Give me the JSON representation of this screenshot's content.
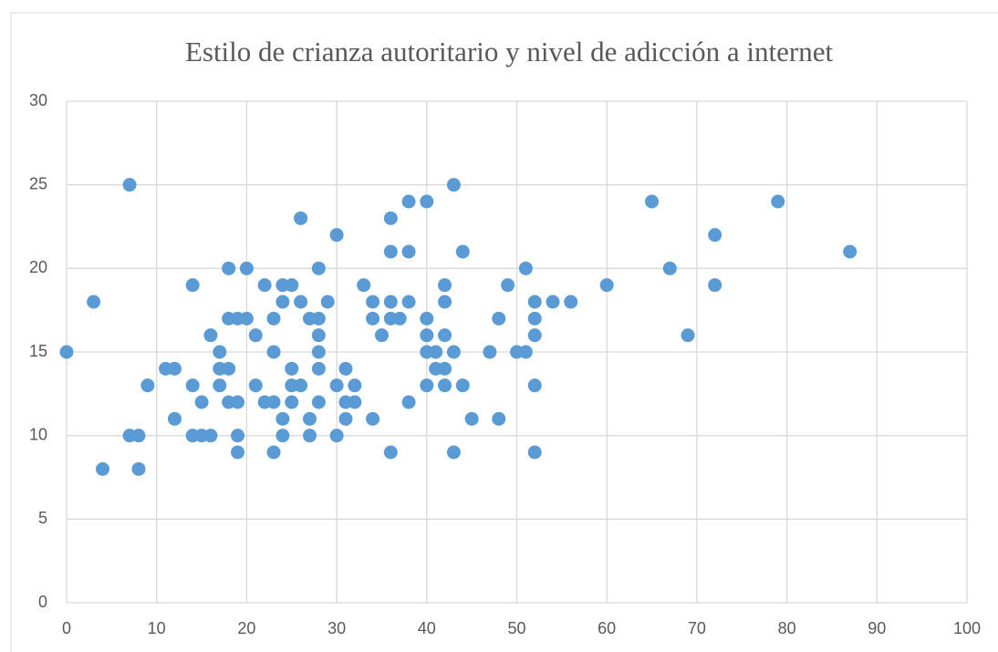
{
  "chart_data": {
    "type": "scatter",
    "title": "Estilo de crianza autoritario y nivel de adicción a internet",
    "color": "#5b9bd5",
    "grid": true,
    "xlim": [
      0,
      100
    ],
    "xticks": [
      0,
      10,
      20,
      30,
      40,
      50,
      60,
      70,
      80,
      90,
      100
    ],
    "ylim": [
      0,
      30
    ],
    "yticks": [
      0,
      5,
      10,
      15,
      20,
      25,
      30
    ],
    "x": [
      0,
      3,
      4,
      7,
      7,
      8,
      8,
      9,
      11,
      12,
      12,
      14,
      14,
      14,
      15,
      15,
      16,
      16,
      17,
      17,
      17,
      18,
      18,
      18,
      18,
      19,
      19,
      19,
      19,
      20,
      20,
      21,
      21,
      22,
      22,
      23,
      23,
      23,
      23,
      24,
      24,
      24,
      24,
      25,
      25,
      25,
      25,
      26,
      26,
      26,
      27,
      27,
      27,
      28,
      28,
      28,
      28,
      28,
      28,
      29,
      30,
      30,
      30,
      31,
      31,
      31,
      32,
      32,
      33,
      34,
      34,
      34,
      35,
      36,
      36,
      36,
      36,
      36,
      37,
      38,
      38,
      38,
      38,
      40,
      40,
      40,
      40,
      40,
      41,
      41,
      42,
      42,
      42,
      42,
      42,
      43,
      43,
      43,
      44,
      44,
      45,
      47,
      48,
      48,
      49,
      50,
      51,
      51,
      52,
      52,
      52,
      52,
      52,
      54,
      56,
      60,
      65,
      67,
      69,
      72,
      72,
      79,
      87
    ],
    "y": [
      15,
      18,
      8,
      25,
      10,
      10,
      8,
      13,
      14,
      14,
      11,
      19,
      13,
      10,
      12,
      10,
      16,
      10,
      15,
      14,
      13,
      20,
      17,
      14,
      12,
      17,
      12,
      10,
      9,
      20,
      17,
      16,
      13,
      19,
      12,
      17,
      15,
      12,
      9,
      19,
      18,
      11,
      10,
      19,
      14,
      13,
      12,
      23,
      18,
      13,
      17,
      11,
      10,
      20,
      17,
      16,
      15,
      14,
      12,
      18,
      22,
      13,
      10,
      14,
      12,
      11,
      13,
      12,
      19,
      18,
      17,
      11,
      16,
      23,
      21,
      18,
      17,
      9,
      17,
      24,
      21,
      18,
      12,
      24,
      17,
      16,
      15,
      13,
      15,
      14,
      19,
      18,
      16,
      14,
      13,
      25,
      15,
      9,
      21,
      13,
      11,
      15,
      17,
      11,
      19,
      15,
      20,
      15,
      18,
      17,
      16,
      13,
      9,
      18,
      18,
      19,
      24,
      20,
      16,
      22,
      19,
      24,
      21
    ]
  }
}
